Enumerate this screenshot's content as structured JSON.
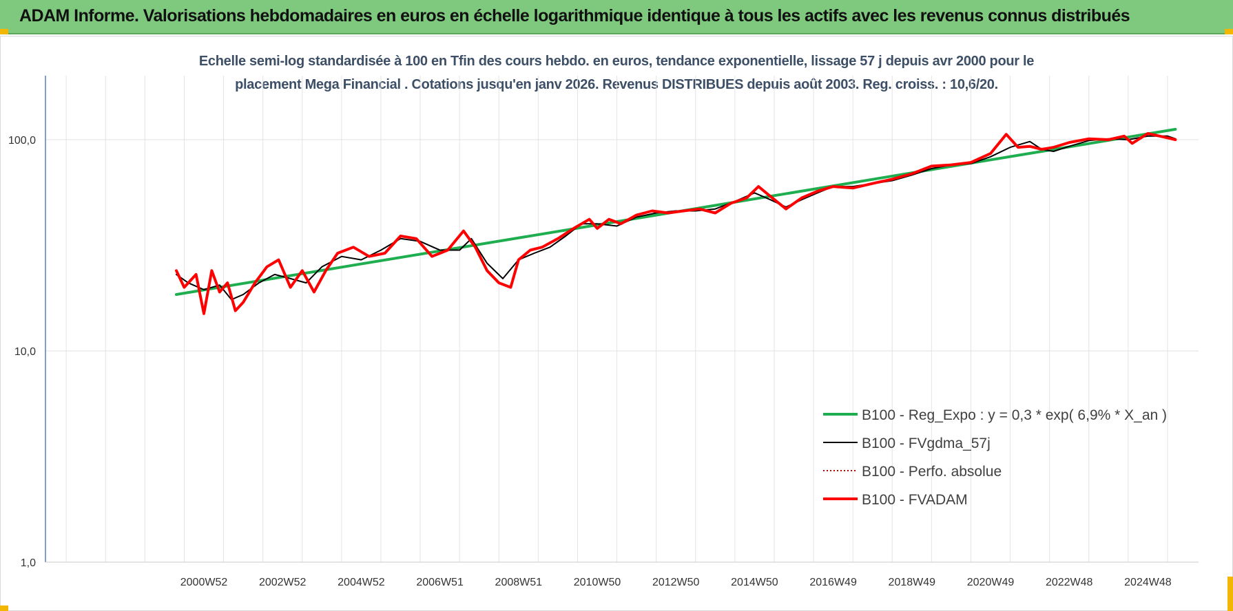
{
  "header": {
    "title": "ADAM Informe. Valorisations hebdomadaires en euros en échelle logarithmique identique à tous les actifs avec les revenus connus distribués"
  },
  "chart_data": {
    "type": "line",
    "title_line1": "Echelle semi-log standardisée à 100 en Tfin des cours hebdo. en euros, tendance exponentielle, lissage 57 j depuis avr 2000 pour le",
    "title_line2": "placement Mega Financial . Cotations jusqu'en janv 2026. Revenus DISTRIBUES depuis août 2003. Reg. croiss. : 10,6/20.",
    "y_scale": "log",
    "ylim": [
      1,
      190
    ],
    "y_ticks": [
      "1,0",
      "10,0",
      "100,0"
    ],
    "x_range": [
      1996.0,
      2025.7
    ],
    "x_tick_labels": [
      "2000W52",
      "2002W52",
      "2004W52",
      "2006W51",
      "2008W51",
      "2010W50",
      "2012W50",
      "2014W50",
      "2016W49",
      "2018W49",
      "2020W49",
      "2022W48",
      "2024W48"
    ],
    "x_tick_positions": [
      2001,
      2003,
      2005,
      2007,
      2009,
      2011,
      2013,
      2015,
      2017,
      2019,
      2021,
      2023,
      2025
    ],
    "grid": true,
    "legend_position": "right",
    "series": [
      {
        "name": "B100 - Reg_Expo : y = 0,3 * exp( 6,9% *  X_an )",
        "color": "#1fae4f",
        "style": "thick",
        "x": [
          2000.3,
          2025.7
        ],
        "y": [
          18.5,
          112
        ]
      },
      {
        "name": "B100 - FVgdma_57j",
        "color": "#000000",
        "style": "thin",
        "x": [
          2000.3,
          2000.6,
          2001.0,
          2001.4,
          2001.7,
          2002.0,
          2002.4,
          2002.8,
          2003.2,
          2003.6,
          2004.0,
          2004.5,
          2005.0,
          2005.5,
          2006.0,
          2006.5,
          2007.0,
          2007.5,
          2007.8,
          2008.2,
          2008.6,
          2009.0,
          2009.4,
          2009.8,
          2010.2,
          2010.6,
          2011.0,
          2011.5,
          2012.0,
          2012.5,
          2013.0,
          2013.5,
          2014.0,
          2014.5,
          2015.0,
          2015.4,
          2015.8,
          2016.2,
          2016.6,
          2017.0,
          2017.5,
          2018.0,
          2018.5,
          2019.0,
          2019.5,
          2020.0,
          2020.5,
          2021.0,
          2021.5,
          2022.0,
          2022.3,
          2022.6,
          2023.0,
          2023.5,
          2024.0,
          2024.5,
          2025.0,
          2025.5,
          2025.7
        ],
        "y": [
          23,
          21,
          19.5,
          20.5,
          17.5,
          18.5,
          21,
          23,
          22,
          21,
          25,
          28,
          27,
          30,
          34,
          33,
          30,
          30,
          34,
          26,
          22,
          27,
          29,
          31,
          35,
          40,
          40,
          39,
          43,
          45,
          46,
          46,
          47,
          51,
          56,
          52,
          48,
          52,
          56,
          60,
          60,
          62,
          64,
          68,
          73,
          76,
          77,
          83,
          92,
          98,
          90,
          88,
          93,
          99,
          101,
          100,
          104,
          104,
          101
        ]
      },
      {
        "name": "B100 - Perfo. absolue",
        "color": "#c00000",
        "style": "dotted",
        "x": [],
        "y": []
      },
      {
        "name": "B100 - FVADAM",
        "color": "#ff0000",
        "style": "thick",
        "x": [
          2000.3,
          2000.5,
          2000.8,
          2001.0,
          2001.2,
          2001.4,
          2001.6,
          2001.8,
          2002.0,
          2002.3,
          2002.6,
          2002.9,
          2003.2,
          2003.5,
          2003.8,
          2004.1,
          2004.4,
          2004.8,
          2005.2,
          2005.6,
          2006.0,
          2006.4,
          2006.8,
          2007.2,
          2007.6,
          2007.9,
          2008.2,
          2008.5,
          2008.8,
          2009.0,
          2009.3,
          2009.6,
          2010.0,
          2010.4,
          2010.8,
          2011.0,
          2011.3,
          2011.6,
          2012.0,
          2012.4,
          2012.8,
          2013.2,
          2013.6,
          2014.0,
          2014.4,
          2014.8,
          2015.1,
          2015.4,
          2015.8,
          2016.2,
          2016.6,
          2017.0,
          2017.5,
          2018.0,
          2018.5,
          2019.0,
          2019.5,
          2020.0,
          2020.5,
          2021.0,
          2021.4,
          2021.7,
          2022.0,
          2022.3,
          2022.6,
          2023.0,
          2023.5,
          2024.0,
          2024.4,
          2024.6,
          2025.0,
          2025.4,
          2025.7
        ],
        "y": [
          24,
          20,
          23,
          15,
          24,
          19,
          21,
          15.5,
          17,
          21,
          25,
          27,
          20,
          24,
          19,
          24,
          29,
          31,
          28,
          29,
          35,
          34,
          28,
          30,
          37,
          31,
          24,
          21,
          20,
          27,
          30,
          31,
          34,
          38,
          42,
          38,
          42,
          40,
          44,
          46,
          45,
          46,
          47,
          45,
          50,
          53,
          60,
          54,
          47,
          53,
          57,
          60,
          59,
          62,
          65,
          69,
          75,
          76,
          78,
          86,
          106,
          92,
          93,
          90,
          92,
          97,
          101,
          100,
          104,
          96,
          107,
          103,
          100
        ]
      }
    ]
  }
}
